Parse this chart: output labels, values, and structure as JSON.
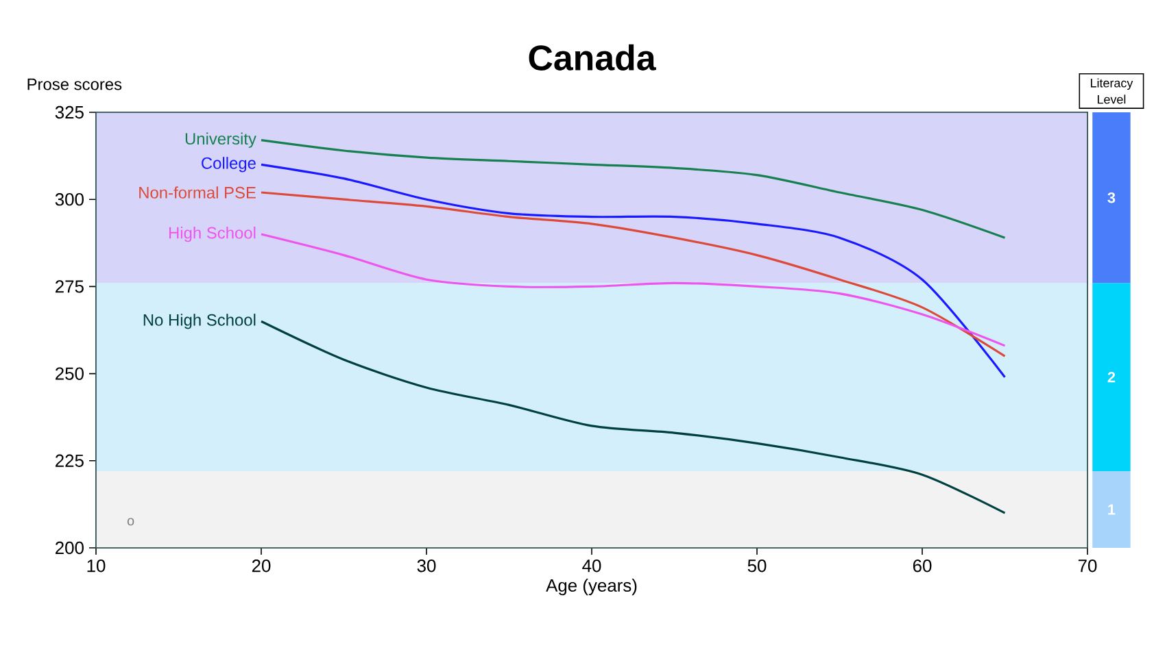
{
  "chart_data": {
    "type": "line",
    "title": "Canada",
    "xlabel": "Age (years)",
    "ylabel": "Prose scores",
    "legend_title": "Literacy Level",
    "x": [
      20,
      25,
      30,
      35,
      40,
      45,
      50,
      55,
      60,
      65
    ],
    "xlim": [
      10,
      70
    ],
    "xticks": [
      10,
      20,
      30,
      40,
      50,
      60,
      70
    ],
    "ylim": [
      200,
      325
    ],
    "yticks": [
      200,
      225,
      250,
      275,
      300,
      325
    ],
    "marker": "none",
    "line_style": "solid",
    "series": [
      {
        "name": "University",
        "color": "#168050",
        "values": [
          317,
          314,
          312,
          311,
          310,
          309,
          307,
          302,
          297,
          289
        ]
      },
      {
        "name": "College",
        "color": "#1a1aff",
        "values": [
          310,
          306,
          300,
          296,
          295,
          295,
          293,
          289,
          277,
          249
        ]
      },
      {
        "name": "Non-formal PSE",
        "color": "#dc4a3a",
        "values": [
          302,
          300,
          298,
          295,
          293,
          289,
          284,
          277,
          269,
          255
        ]
      },
      {
        "name": "High School",
        "color": "#ee55ee",
        "values": [
          290,
          284,
          277,
          275,
          275,
          276,
          275,
          273,
          267,
          258
        ]
      },
      {
        "name": "No High School",
        "color": "#004040",
        "values": [
          265,
          254,
          246,
          241,
          235,
          233,
          230,
          226,
          221,
          210
        ]
      }
    ],
    "bands": [
      {
        "axis": "y",
        "from": 200,
        "to": 222,
        "label": "1",
        "color": "#f2f2f2"
      },
      {
        "axis": "y",
        "from": 222,
        "to": 276,
        "label": "2",
        "color": "#d4effc"
      },
      {
        "axis": "y",
        "from": 276,
        "to": 325,
        "label": "3",
        "color": "#d6d4f8"
      }
    ],
    "annotations": [
      "o"
    ]
  }
}
